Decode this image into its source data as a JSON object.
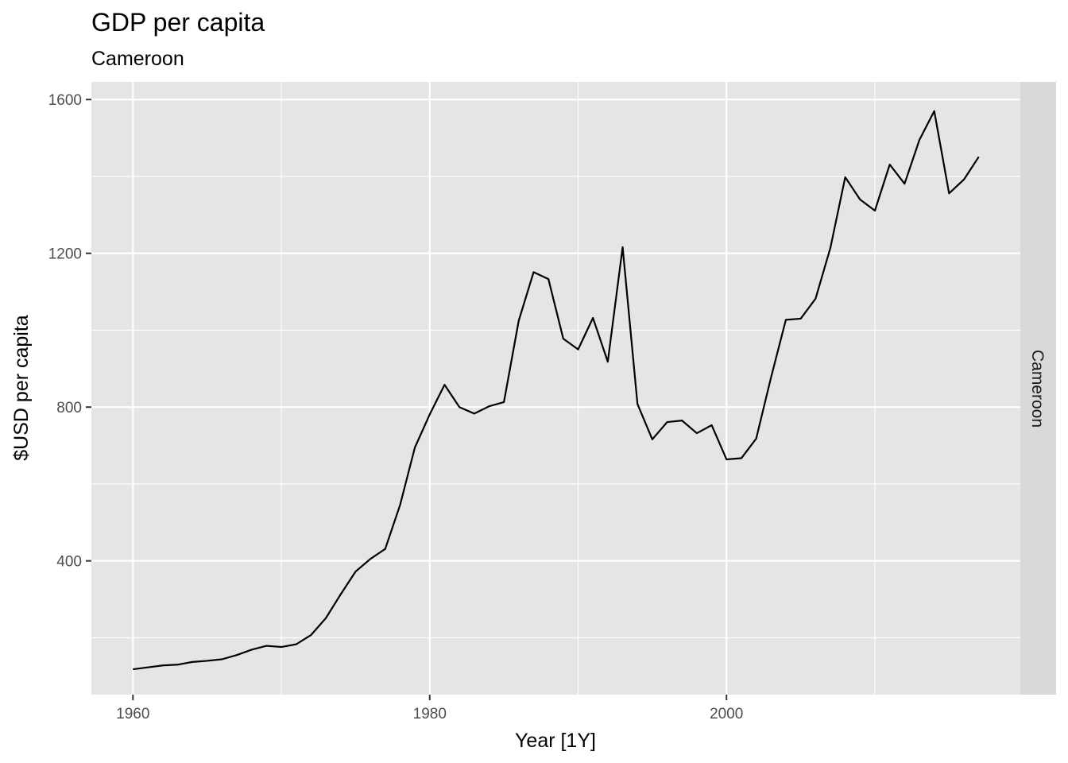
{
  "chart_data": {
    "type": "line",
    "title": "GDP per capita",
    "subtitle": "Cameroon",
    "xlabel": "Year [1Y]",
    "ylabel": "$USD per capita",
    "facet_label": "Cameroon",
    "xlim": [
      1957.2,
      2019.8
    ],
    "ylim": [
      52,
      1646
    ],
    "x_ticks": [
      1960,
      1980,
      2000
    ],
    "x_minor_ticks": [
      1970,
      1990,
      2010
    ],
    "y_ticks": [
      400,
      800,
      1200,
      1600
    ],
    "y_minor_ticks": [
      200,
      600,
      1000,
      1400
    ],
    "grid": true,
    "line_color": "#000000",
    "panel_color": "#e5e5e5",
    "strip_color": "#d9d9d9",
    "series": [
      {
        "x": [
          1960,
          1961,
          1962,
          1963,
          1964,
          1965,
          1966,
          1967,
          1968,
          1969,
          1970,
          1971,
          1972,
          1973,
          1974,
          1975,
          1976,
          1977,
          1978,
          1979,
          1980,
          1981,
          1982,
          1983,
          1984,
          1985,
          1986,
          1987,
          1988,
          1989,
          1990,
          1991,
          1992,
          1993,
          1994,
          1995,
          1996,
          1997,
          1998,
          1999,
          2000,
          2001,
          2002,
          2003,
          2004,
          2005,
          2006,
          2007,
          2008,
          2009,
          2010,
          2011,
          2012,
          2013,
          2014,
          2015,
          2016,
          2017
        ],
        "y": [
          118,
          123,
          128,
          130,
          137,
          140,
          144,
          155,
          169,
          179,
          176,
          183,
          207,
          251,
          313,
          372,
          405,
          431,
          545,
          695,
          781,
          858,
          800,
          783,
          802,
          813,
          1025,
          1151,
          1133,
          978,
          950,
          1032,
          918,
          1216,
          808,
          716,
          761,
          765,
          732,
          753,
          664,
          667,
          718,
          877,
          1027,
          1030,
          1082,
          1214,
          1398,
          1340,
          1311,
          1431,
          1381,
          1495,
          1570,
          1356,
          1392,
          1451
        ]
      }
    ]
  }
}
